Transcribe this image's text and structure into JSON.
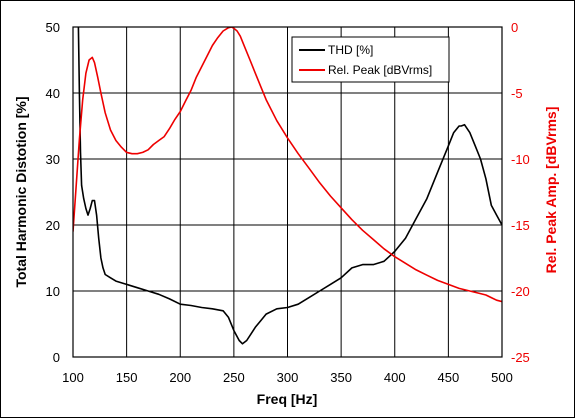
{
  "chart_data": {
    "type": "line",
    "xlabel": "Freq [Hz]",
    "ylabel": "Total Harmonic Distotion [%]",
    "y2label": "Rel. Peak Amp. [dBVrms]",
    "xlim": [
      100,
      500
    ],
    "ylim": [
      0,
      50
    ],
    "y2lim": [
      -25,
      0
    ],
    "x_ticks": [
      100,
      150,
      200,
      250,
      300,
      350,
      400,
      450,
      500
    ],
    "y_ticks": [
      0,
      10,
      20,
      30,
      40,
      50
    ],
    "y2_ticks": [
      0,
      -5,
      -10,
      -15,
      -20,
      -25
    ],
    "grid": true,
    "legend_position": "top-right",
    "colors": {
      "thd": "#000000",
      "peak": "#ee0000",
      "axis_right": "#ee0000",
      "frame": "#000000"
    },
    "series": [
      {
        "name": "THD [%]",
        "axis": "left",
        "x": [
          105,
          106,
          107,
          108,
          110,
          112,
          114,
          116,
          118,
          120,
          122,
          124,
          126,
          128,
          130,
          135,
          140,
          150,
          160,
          170,
          180,
          190,
          200,
          210,
          220,
          230,
          240,
          245,
          250,
          255,
          258,
          262,
          266,
          270,
          275,
          280,
          290,
          300,
          310,
          320,
          330,
          340,
          350,
          360,
          370,
          380,
          390,
          400,
          410,
          420,
          430,
          440,
          450,
          455,
          460,
          462,
          465,
          470,
          475,
          480,
          485,
          490,
          495,
          500
        ],
        "y": [
          50,
          40,
          31,
          26,
          24,
          22.5,
          21.5,
          22.5,
          23.7,
          23.7,
          21.5,
          18,
          15,
          13.5,
          12.5,
          12,
          11.5,
          11,
          10.5,
          10,
          9.5,
          8.8,
          8,
          7.8,
          7.5,
          7.3,
          7,
          6,
          4,
          2.5,
          2,
          2.5,
          3.5,
          4.5,
          5.5,
          6.5,
          7.3,
          7.5,
          8,
          9,
          10,
          11,
          12,
          13.5,
          14,
          14,
          14.5,
          16,
          18,
          21,
          24,
          28,
          32,
          34,
          35,
          35,
          35.2,
          34,
          32,
          30,
          27,
          23,
          21.5,
          20
        ]
      },
      {
        "name": "Rel. Peak [dBVrms]",
        "axis": "right",
        "x": [
          100,
          103,
          106,
          109,
          112,
          115,
          118,
          120,
          123,
          126,
          130,
          135,
          140,
          145,
          150,
          155,
          160,
          165,
          170,
          175,
          180,
          185,
          190,
          195,
          200,
          205,
          210,
          215,
          220,
          225,
          230,
          235,
          240,
          245,
          248,
          250,
          253,
          256,
          260,
          265,
          270,
          275,
          280,
          290,
          300,
          310,
          320,
          330,
          340,
          350,
          360,
          370,
          380,
          390,
          400,
          410,
          420,
          430,
          440,
          450,
          460,
          470,
          480,
          485,
          490,
          495,
          500
        ],
        "y": [
          -15.5,
          -12,
          -8.5,
          -5.5,
          -3.5,
          -2.5,
          -2.3,
          -2.7,
          -3.8,
          -5,
          -6.5,
          -7.8,
          -8.6,
          -9.1,
          -9.5,
          -9.6,
          -9.6,
          -9.5,
          -9.3,
          -8.9,
          -8.6,
          -8.3,
          -7.7,
          -7,
          -6.4,
          -5.6,
          -4.8,
          -3.8,
          -3,
          -2.2,
          -1.4,
          -0.8,
          -0.3,
          -0.05,
          0,
          -0.1,
          -0.3,
          -0.7,
          -1.5,
          -2.5,
          -3.5,
          -4.5,
          -5.5,
          -7.1,
          -8.4,
          -9.6,
          -10.7,
          -11.8,
          -12.8,
          -13.7,
          -14.6,
          -15.4,
          -16.1,
          -16.8,
          -17.4,
          -17.9,
          -18.4,
          -18.8,
          -19.2,
          -19.5,
          -19.8,
          -20,
          -20.2,
          -20.3,
          -20.5,
          -20.7,
          -20.8
        ]
      }
    ]
  }
}
